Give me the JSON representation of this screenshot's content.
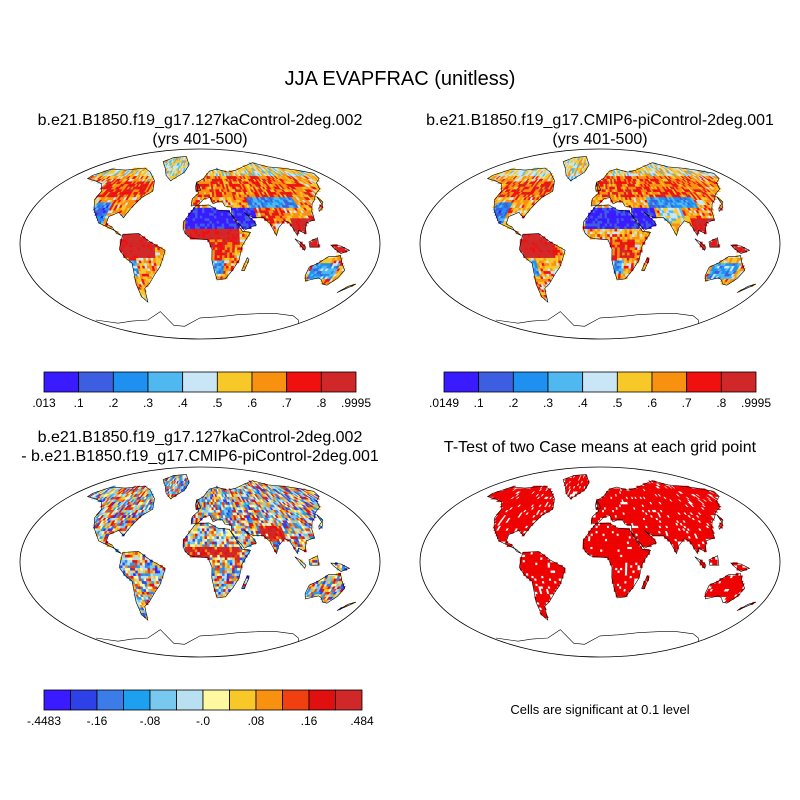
{
  "figure": {
    "title": "JJA EVAPFRAC (unitless)"
  },
  "panels": [
    {
      "id": "case1",
      "title_line1": "b.e21.B1850.f19_g17.127kaControl-2deg.002",
      "title_line2": "(yrs 401-500)",
      "colorbar_labels": [
        ".013",
        ".1",
        ".2",
        ".3",
        ".4",
        ".5",
        ".6",
        ".7",
        ".8",
        ".9995"
      ],
      "colorbar_colors": [
        "#3a1aff",
        "#3c5ee0",
        "#1e90f0",
        "#50b8f0",
        "#c8e6f5",
        "#f8c828",
        "#f89010",
        "#f01010",
        "#d02828"
      ]
    },
    {
      "id": "case2",
      "title_line1": "b.e21.B1850.f19_g17.CMIP6-piControl-2deg.001",
      "title_line2": "(yrs 401-500)",
      "colorbar_labels": [
        ".0149",
        ".1",
        ".2",
        ".3",
        ".4",
        ".5",
        ".6",
        ".7",
        ".8",
        ".9995"
      ],
      "colorbar_colors": [
        "#3a1aff",
        "#3c5ee0",
        "#1e90f0",
        "#50b8f0",
        "#c8e6f5",
        "#f8c828",
        "#f89010",
        "#f01010",
        "#d02828"
      ]
    },
    {
      "id": "difference",
      "title_line1": "b.e21.B1850.f19_g17.127kaControl-2deg.002",
      "title_line2": "- b.e21.B1850.f19_g17.CMIP6-piControl-2deg.001",
      "colorbar_labels": [
        "-.4483",
        "-.16",
        "-.08",
        "-.0",
        ".08",
        ".16",
        ".484"
      ],
      "colorbar_colors": [
        "#3a1aff",
        "#2e40e8",
        "#3c7ce8",
        "#1ea0f0",
        "#78c8f0",
        "#b8e0f0",
        "#fff8a0",
        "#f8c828",
        "#f89010",
        "#f04010",
        "#e01010",
        "#d02828"
      ]
    },
    {
      "id": "ttest",
      "title_line1": "T-Test of two Case means at each grid point",
      "note": "Cells are significant at 0.1 level",
      "fill_color": "#ee0000"
    }
  ],
  "map": {
    "projection": "Robinson",
    "coastline_color": "#000000",
    "background": "#ffffff"
  }
}
